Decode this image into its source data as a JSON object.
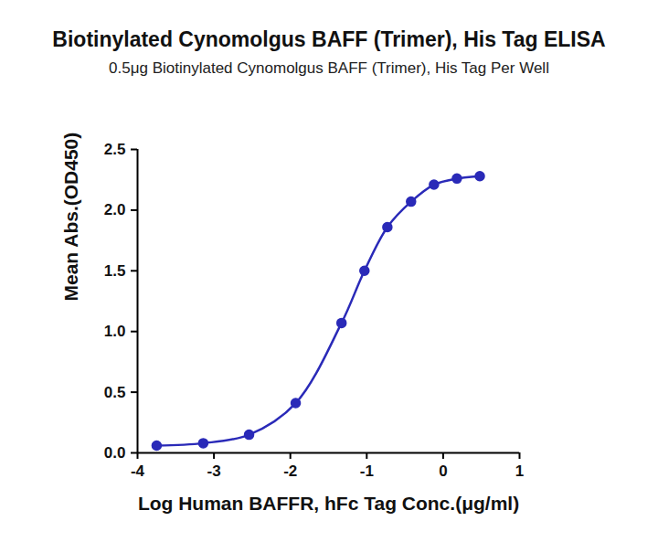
{
  "chart_data": {
    "type": "line",
    "marker": "circle",
    "color": "#2a2ab8",
    "title": "Biotinylated Cynomolgus BAFF (Trimer), His Tag ELISA",
    "subtitle": "0.5μg Biotinylated Cynomolgus BAFF (Trimer), His Tag Per Well",
    "x_label": "Log Human BAFFR, hFc Tag Conc.(μg/ml)",
    "y_label": "Mean Abs.(OD450)",
    "x": [
      -3.75,
      -3.14,
      -2.54,
      -1.93,
      -1.33,
      -1.03,
      -0.73,
      -0.42,
      -0.12,
      0.18,
      0.48
    ],
    "values": [
      0.06,
      0.08,
      0.15,
      0.41,
      1.07,
      1.5,
      1.86,
      2.07,
      2.21,
      2.26,
      2.28
    ],
    "xlim": [
      -4,
      1
    ],
    "xticks": [
      -4,
      -3,
      -2,
      -1,
      0,
      1
    ],
    "ylim": [
      0,
      2.5
    ],
    "yticks": [
      {
        "value": 0,
        "label": "0.0"
      },
      0.5,
      {
        "value": 1,
        "label": "1.0"
      },
      1.5,
      {
        "value": 2,
        "label": "2.0"
      },
      2.5
    ],
    "grid": false
  }
}
